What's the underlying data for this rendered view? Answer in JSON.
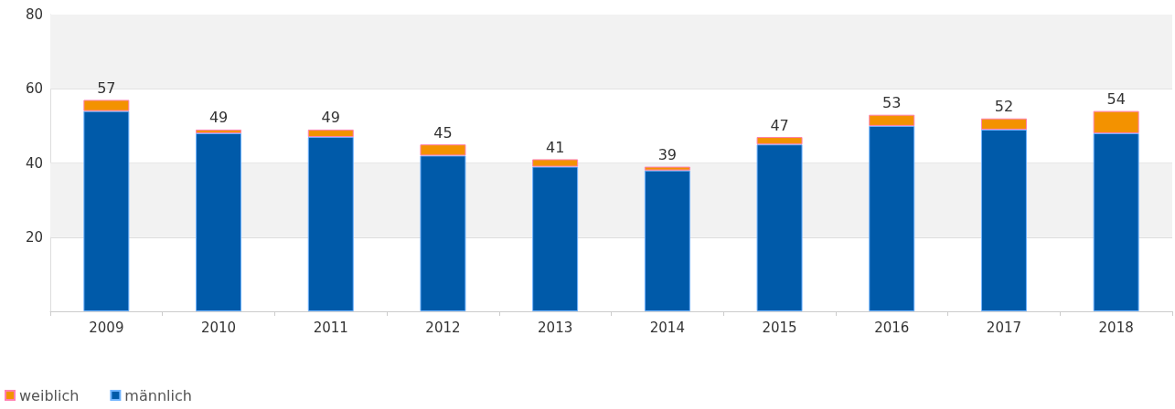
{
  "chart_data": {
    "type": "bar",
    "stacked": true,
    "categories": [
      "2009",
      "2010",
      "2011",
      "2012",
      "2013",
      "2014",
      "2015",
      "2016",
      "2017",
      "2018"
    ],
    "series": [
      {
        "name": "männlich",
        "color": "#005aa9",
        "values": [
          54,
          48,
          47,
          42,
          39,
          38,
          45,
          50,
          49,
          48
        ]
      },
      {
        "name": "weiblich",
        "color": "#f39200",
        "values": [
          3,
          1,
          2,
          3,
          2,
          1,
          2,
          3,
          3,
          6
        ]
      }
    ],
    "totals": [
      "57",
      "49",
      "49",
      "45",
      "41",
      "39",
      "47",
      "53",
      "52",
      "54"
    ],
    "ylim": [
      0,
      80
    ],
    "yticks": [
      20,
      40,
      60,
      80
    ],
    "bands": [
      {
        "axis": "y",
        "from": 20,
        "to": 40,
        "color": "#f2f2f2"
      },
      {
        "axis": "y",
        "from": 60,
        "to": 80,
        "color": "#f2f2f2"
      }
    ],
    "grid": "y",
    "legend": "bottom left"
  }
}
